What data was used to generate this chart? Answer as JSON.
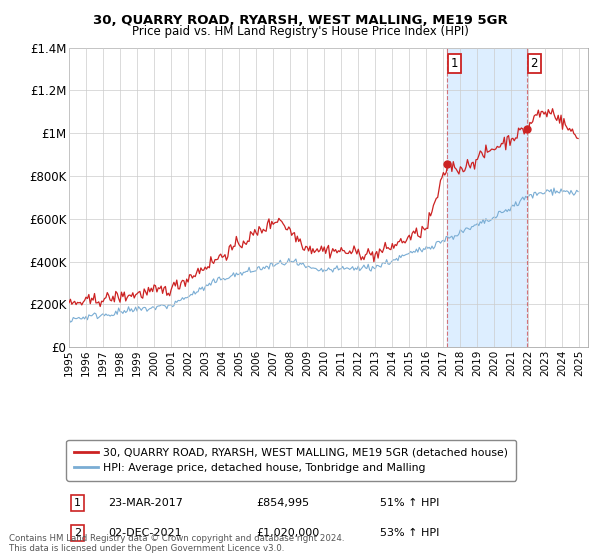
{
  "title": "30, QUARRY ROAD, RYARSH, WEST MALLING, ME19 5GR",
  "subtitle": "Price paid vs. HM Land Registry's House Price Index (HPI)",
  "legend_line1": "30, QUARRY ROAD, RYARSH, WEST MALLING, ME19 5GR (detached house)",
  "legend_line2": "HPI: Average price, detached house, Tonbridge and Malling",
  "annotation1_label": "1",
  "annotation1_date": "23-MAR-2017",
  "annotation1_price": "£854,995",
  "annotation1_hpi": "51% ↑ HPI",
  "annotation2_label": "2",
  "annotation2_date": "02-DEC-2021",
  "annotation2_price": "£1,020,000",
  "annotation2_hpi": "53% ↑ HPI",
  "footer": "Contains HM Land Registry data © Crown copyright and database right 2024.\nThis data is licensed under the Open Government Licence v3.0.",
  "red_color": "#cc2222",
  "blue_color": "#7aadd4",
  "shade_color": "#ddeeff",
  "annotation_box_color": "#cc2222",
  "grid_color": "#cccccc",
  "ylim": [
    0,
    1400000
  ],
  "yticks": [
    0,
    200000,
    400000,
    600000,
    800000,
    1000000,
    1200000,
    1400000
  ],
  "ytick_labels": [
    "£0",
    "£200K",
    "£400K",
    "£600K",
    "£800K",
    "£1M",
    "£1.2M",
    "£1.4M"
  ],
  "point1_x": 2017.22,
  "point1_y": 854995,
  "point2_x": 2021.92,
  "point2_y": 1020000,
  "xmin": 1995,
  "xmax": 2025.5
}
